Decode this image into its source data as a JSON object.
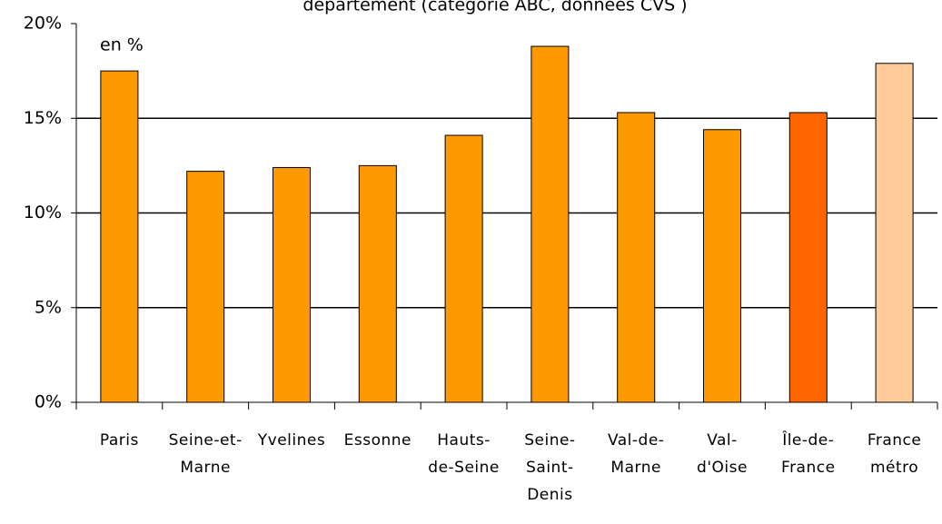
{
  "chart_data": {
    "type": "bar",
    "title": "département (catégorie ABC, données CVS )",
    "annotation": "en %",
    "categories": [
      "Paris",
      "Seine-et-Marne",
      "Yvelines",
      "Essonne",
      "Hauts-de-Seine",
      "Seine-Saint-Denis",
      "Val-de-Marne",
      "Val-d'Oise",
      "Île-de-France",
      "France métro"
    ],
    "values": [
      17.5,
      12.2,
      12.4,
      12.5,
      14.1,
      18.8,
      15.3,
      14.4,
      15.3,
      17.9
    ],
    "colors": [
      "#ff9900",
      "#ff9900",
      "#ff9900",
      "#ff9900",
      "#ff9900",
      "#ff9900",
      "#ff9900",
      "#ff9900",
      "#ff6600",
      "#ffcc99"
    ],
    "ylim": [
      0,
      20
    ],
    "yticks": [
      {
        "value": 0,
        "label": "0%"
      },
      {
        "value": 5,
        "label": "5%"
      },
      {
        "value": 10,
        "label": "10%"
      },
      {
        "value": 15,
        "label": "15%"
      },
      {
        "value": 20,
        "label": "20%"
      }
    ],
    "grid": true
  }
}
